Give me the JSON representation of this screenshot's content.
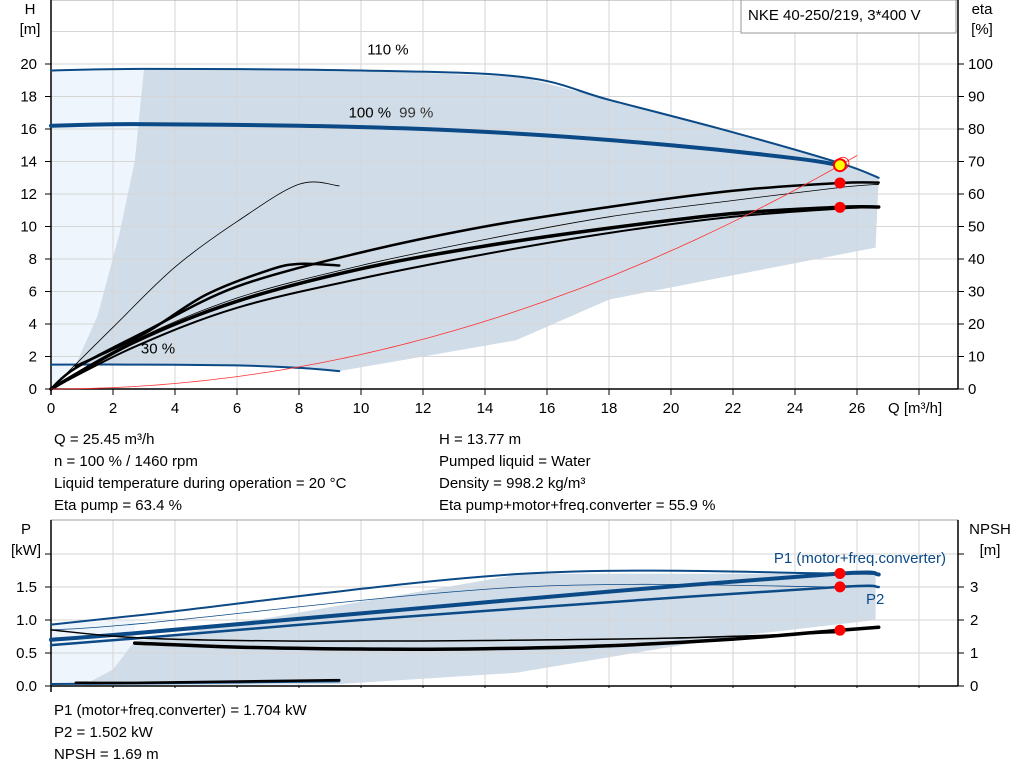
{
  "chart_data": [
    {
      "type": "line",
      "title": "NKE 40-250/219, 3*400 V",
      "xlabel": "Q [m³/h]",
      "ylabel_left": [
        "H",
        "[m]"
      ],
      "ylabel_right": [
        "eta",
        "[%]"
      ],
      "xlim": [
        0,
        29.3
      ],
      "ylim_left": [
        0,
        24
      ],
      "ylim_right": [
        0,
        120
      ],
      "xticks": [
        "0",
        "2",
        "4",
        "6",
        "8",
        "10",
        "12",
        "14",
        "16",
        "18",
        "20",
        "22",
        "24",
        "26"
      ],
      "yticks_left": [
        "0",
        "2",
        "4",
        "6",
        "8",
        "10",
        "12",
        "14",
        "16",
        "18",
        "20"
      ],
      "yticks_right": [
        "0",
        "10",
        "20",
        "30",
        "40",
        "50",
        "60",
        "70",
        "80",
        "90",
        "100"
      ],
      "grid": true,
      "colors": {
        "head": "#0b4a86",
        "eta": "#000000",
        "system": "#ff3030",
        "area": "#d0dce7",
        "area_light": "#eef5fc",
        "point": "#ff0000",
        "duty_point": "#ffff00"
      },
      "labels": [
        {
          "text": "110 %",
          "x": 10.2,
          "y": 20.6
        },
        {
          "text": "100 %",
          "x": 9.6,
          "y": 16.7
        },
        {
          "text": "99 %",
          "x": 9.6,
          "y": 16.5
        },
        {
          "text": "30 %",
          "x": 2.9,
          "y": 2.2
        }
      ],
      "series": [
        {
          "axis": "left",
          "kind": "head",
          "width": 2,
          "points": [
            [
              0,
              19.6
            ],
            [
              3,
              19.7
            ],
            [
              10,
              19.6
            ],
            [
              15.2,
              19.2
            ],
            [
              18,
              17.8
            ],
            [
              22,
              15.8
            ],
            [
              25.45,
              13.9
            ],
            [
              26.7,
              13.0
            ]
          ]
        },
        {
          "axis": "left",
          "kind": "head",
          "width": 4,
          "points": [
            [
              0,
              16.2
            ],
            [
              2.7,
              16.3
            ],
            [
              8,
              16.2
            ],
            [
              12,
              16.0
            ],
            [
              16,
              15.6
            ],
            [
              20,
              15.0
            ],
            [
              24,
              14.2
            ],
            [
              25.45,
              13.77
            ]
          ]
        },
        {
          "axis": "left",
          "kind": "head",
          "width": 2,
          "points": [
            [
              0,
              1.5
            ],
            [
              3,
              1.5
            ],
            [
              6,
              1.45
            ],
            [
              8,
              1.3
            ],
            [
              9.3,
              1.1
            ]
          ]
        },
        {
          "axis": "right",
          "kind": "eta",
          "width": 0.8,
          "points": [
            [
              0,
              0
            ],
            [
              2,
              19
            ],
            [
              4,
              37.5
            ],
            [
              6,
              51.5
            ],
            [
              8,
              63
            ],
            [
              9.3,
              62.5
            ]
          ]
        },
        {
          "axis": "right",
          "kind": "eta",
          "width": 2.5,
          "points": [
            [
              0.8,
              7
            ],
            [
              3,
              17
            ],
            [
              5,
              29
            ],
            [
              7,
              36.5
            ],
            [
              8,
              38.5
            ],
            [
              9.3,
              38
            ]
          ]
        },
        {
          "axis": "right",
          "kind": "eta",
          "width": 2.5,
          "points": [
            [
              0,
              0
            ],
            [
              0.8,
              6.5
            ],
            [
              3,
              17.5
            ],
            [
              6,
              31.5
            ],
            [
              10,
              42
            ],
            [
              14,
              50
            ],
            [
              18,
              56
            ],
            [
              22,
              61
            ],
            [
              25.45,
              63.4
            ],
            [
              26.7,
              63.5
            ]
          ]
        },
        {
          "axis": "right",
          "kind": "eta",
          "width": 0.8,
          "points": [
            [
              0,
              0
            ],
            [
              2.7,
              15
            ],
            [
              6,
              28
            ],
            [
              10,
              38
            ],
            [
              14,
              46
            ],
            [
              18,
              53
            ],
            [
              22,
              58
            ],
            [
              25.45,
              62
            ],
            [
              26.7,
              63
            ]
          ]
        },
        {
          "axis": "right",
          "kind": "eta",
          "width": 3.5,
          "points": [
            [
              0,
              0
            ],
            [
              2.7,
              14.5
            ],
            [
              6,
              27
            ],
            [
              10,
              37
            ],
            [
              14,
              44
            ],
            [
              18,
              49.5
            ],
            [
              22,
              54
            ],
            [
              25.45,
              55.9
            ],
            [
              26.7,
              56
            ]
          ]
        },
        {
          "axis": "right",
          "kind": "eta",
          "width": 2,
          "points": [
            [
              0,
              0
            ],
            [
              2.7,
              13
            ],
            [
              6,
              25
            ],
            [
              10,
              34
            ],
            [
              14,
              41.5
            ],
            [
              18,
              48
            ],
            [
              22,
              53
            ],
            [
              25.45,
              55.5
            ],
            [
              26.7,
              56
            ]
          ]
        },
        {
          "axis": "left",
          "kind": "system",
          "width": 0.8,
          "points": "parabola",
          "coef": 0.02126,
          "qmax": 26
        }
      ],
      "points": [
        {
          "axis": "left",
          "x": 25.45,
          "y": 13.77,
          "kind": "duty"
        },
        {
          "axis": "right",
          "x": 25.45,
          "y": 63.4,
          "kind": "point"
        },
        {
          "axis": "right",
          "x": 25.45,
          "y": 55.9,
          "kind": "point"
        }
      ],
      "area": [
        [
          3,
          19.7
        ],
        [
          10,
          19.6
        ],
        [
          15.2,
          19.2
        ],
        [
          18,
          17.8
        ],
        [
          22,
          15.8
        ],
        [
          25.45,
          13.9
        ],
        [
          26.7,
          13.0
        ],
        [
          26.6,
          8.7
        ],
        [
          22,
          7.0
        ],
        [
          18,
          5.5
        ],
        [
          15,
          3.0
        ],
        [
          9.3,
          1.1
        ],
        [
          6,
          1.45
        ],
        [
          3,
          1.5
        ],
        [
          0.8,
          1.5
        ],
        [
          1.5,
          4.5
        ],
        [
          2.2,
          9.5
        ],
        [
          2.7,
          14
        ],
        [
          3,
          19.7
        ]
      ],
      "area_light": [
        [
          0,
          0
        ],
        [
          0,
          19.6
        ],
        [
          3,
          19.7
        ],
        [
          2.7,
          14
        ],
        [
          2.2,
          9.5
        ],
        [
          1.5,
          4.5
        ],
        [
          0.8,
          1.5
        ],
        [
          0,
          0
        ]
      ]
    },
    {
      "type": "line",
      "ylabel_left": [
        "P",
        "[kW]"
      ],
      "ylabel_right": [
        "NPSH",
        "[m]"
      ],
      "xlim": [
        0,
        29.3
      ],
      "ylim_left": [
        0,
        2.5
      ],
      "ylim_right": [
        0,
        5
      ],
      "yticks_left": [
        "0.0",
        "0.5",
        "1.0",
        "1.5"
      ],
      "yticks_right": [
        "0",
        "1",
        "2",
        "3"
      ],
      "grid": true,
      "labels": [
        {
          "text": "P1 (motor+freq.converter)",
          "x": 22.5,
          "y": 1.85
        },
        {
          "text": "P2",
          "x": 26.4,
          "y": 1.35
        }
      ],
      "series": [
        {
          "axis": "left",
          "kind": "power",
          "width": 2,
          "points": [
            [
              0,
              0.93
            ],
            [
              3,
              1.08
            ],
            [
              15.2,
              1.7
            ],
            [
              25.45,
              1.704
            ],
            [
              26.7,
              1.69
            ]
          ]
        },
        {
          "axis": "left",
          "kind": "power",
          "width": 0.8,
          "points": [
            [
              0,
              0.85
            ],
            [
              3,
              0.95
            ],
            [
              15.2,
              1.5
            ],
            [
              25.45,
              1.5
            ]
          ]
        },
        {
          "axis": "left",
          "kind": "power",
          "width": 4,
          "points": [
            [
              0,
              0.7
            ],
            [
              2.7,
              0.8
            ],
            [
              10,
              1.1
            ],
            [
              18,
              1.43
            ],
            [
              25.45,
              1.704
            ],
            [
              26.7,
              1.69
            ]
          ]
        },
        {
          "axis": "left",
          "kind": "power",
          "width": 2.5,
          "points": [
            [
              0,
              0.62
            ],
            [
              2.7,
              0.72
            ],
            [
              10,
              1.0
            ],
            [
              18,
              1.27
            ],
            [
              25.45,
              1.502
            ],
            [
              26.7,
              1.5
            ]
          ]
        },
        {
          "axis": "left",
          "kind": "power",
          "width": 2,
          "points": [
            [
              0,
              0.03
            ],
            [
              3,
              0.04
            ],
            [
              9.3,
              0.07
            ]
          ]
        },
        {
          "axis": "right",
          "kind": "npsh",
          "width": 1.5,
          "points": [
            [
              0,
              1.7
            ],
            [
              3,
              1.45
            ],
            [
              8,
              1.36
            ],
            [
              14,
              1.38
            ],
            [
              20,
              1.45
            ],
            [
              25.45,
              1.62
            ]
          ]
        },
        {
          "axis": "right",
          "kind": "npsh",
          "width": 3.5,
          "points": [
            [
              2.7,
              1.3
            ],
            [
              6,
              1.18
            ],
            [
              10,
              1.12
            ],
            [
              14,
              1.13
            ],
            [
              18,
              1.22
            ],
            [
              22,
              1.42
            ],
            [
              25.45,
              1.69
            ],
            [
              26.7,
              1.78
            ]
          ]
        },
        {
          "axis": "right",
          "kind": "npsh",
          "width": 2.5,
          "points": [
            [
              0.8,
              0.1
            ],
            [
              3,
              0.1
            ],
            [
              9.3,
              0.18
            ]
          ]
        }
      ],
      "points": [
        {
          "axis": "left",
          "x": 25.45,
          "y": 1.704,
          "kind": "point"
        },
        {
          "axis": "left",
          "x": 25.45,
          "y": 1.502,
          "kind": "point"
        },
        {
          "axis": "right",
          "x": 25.45,
          "y": 1.69,
          "kind": "point"
        }
      ],
      "area": [
        [
          2.7,
          0.68
        ],
        [
          15.2,
          1.7
        ],
        [
          26.6,
          1.7
        ],
        [
          26.6,
          1.0
        ],
        [
          22,
          0.75
        ],
        [
          15,
          0.2
        ],
        [
          9.3,
          0.03
        ],
        [
          1,
          0
        ],
        [
          2,
          0.25
        ],
        [
          2.7,
          0.68
        ]
      ],
      "area_light": [
        [
          0,
          0
        ],
        [
          0,
          0.95
        ],
        [
          2.7,
          1.0
        ],
        [
          2.7,
          0.68
        ],
        [
          2,
          0.25
        ],
        [
          1,
          0
        ],
        [
          0,
          0
        ]
      ]
    }
  ],
  "info_top": {
    "left": [
      "Q = 25.45 m³/h",
      "n = 100 % / 1460 rpm",
      "Liquid temperature during operation = 20 °C",
      "Eta pump = 63.4 %"
    ],
    "right": [
      "H = 13.77 m",
      "Pumped liquid = Water",
      "Density = 998.2 kg/m³",
      "Eta pump+motor+freq.converter = 55.9 %"
    ]
  },
  "info_bottom": [
    "P1 (motor+freq.converter) = 1.704 kW",
    "P2 = 1.502 kW",
    "NPSH = 1.69 m"
  ]
}
